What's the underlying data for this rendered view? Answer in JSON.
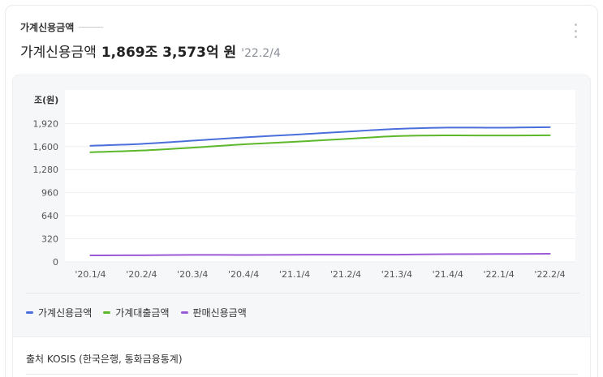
{
  "header": {
    "eyebrow": "가계신용금액",
    "title": "가계신용금액",
    "value": "1,869조 3,573억 원",
    "date": "'22.2/4",
    "menu_icon": "kebab-menu-icon"
  },
  "footer": {
    "source": "출처 KOSIS (한국은행, 통화금융통계)"
  },
  "colors": {
    "series1": "#4a6fdc",
    "series2": "#5cb82a",
    "series3": "#9b5ad6"
  },
  "chart_data": {
    "type": "line",
    "ylabel": "조(원)",
    "ylim": [
      0,
      2250
    ],
    "yticks": [
      0,
      320,
      640,
      960,
      1280,
      1600,
      1920
    ],
    "categories": [
      "'20.1/4",
      "'20.2/4",
      "'20.3/4",
      "'20.4/4",
      "'21.1/4",
      "'21.2/4",
      "'21.3/4",
      "'21.4/4",
      "'22.1/4",
      "'22.2/4"
    ],
    "grid": true,
    "legend": "bottom-left",
    "series": [
      {
        "name": "가계신용금액",
        "color": "#4a6fdc",
        "values": [
          1611,
          1637,
          1682,
          1727,
          1765,
          1806,
          1845,
          1863,
          1862,
          1869
        ]
      },
      {
        "name": "가계대출금액",
        "color": "#5cb82a",
        "values": [
          1521,
          1545,
          1585,
          1631,
          1666,
          1706,
          1745,
          1755,
          1753,
          1757
        ]
      },
      {
        "name": "판매신용금액",
        "color": "#9b5ad6",
        "values": [
          90,
          92,
          97,
          96,
          99,
          100,
          100,
          107,
          109,
          112
        ]
      }
    ]
  }
}
